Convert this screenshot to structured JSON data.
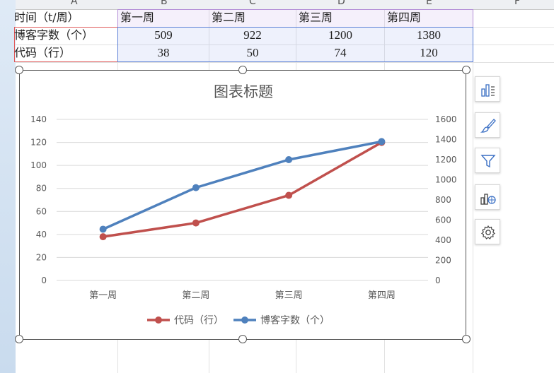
{
  "column_headers": [
    "A",
    "B",
    "C",
    "D",
    "E",
    "F"
  ],
  "table": {
    "header_row": [
      "时间（t/周）",
      "第一周",
      "第二周",
      "第三周",
      "第四周"
    ],
    "rows": [
      {
        "label": "博客字数（个）",
        "values": [
          "509",
          "922",
          "1200",
          "1380"
        ]
      },
      {
        "label": "代码（行）",
        "values": [
          "38",
          "50",
          "74",
          "120"
        ]
      }
    ]
  },
  "side_toolbar": {
    "icons": [
      "chart-elements-icon",
      "chart-style-icon",
      "chart-filter-icon",
      "chart-type-icon",
      "settings-icon"
    ]
  },
  "colors": {
    "series_code": "#c0504d",
    "series_blog": "#4f81bd",
    "selection_red": "#e05a5a",
    "selection_purple": "#b48fd6",
    "selection_blue": "#5b7fd6"
  },
  "chart_data": {
    "type": "line",
    "title": "图表标题",
    "categories": [
      "第一周",
      "第二周",
      "第三周",
      "第四周"
    ],
    "series": [
      {
        "name": "代码（行）",
        "axis": "left",
        "values": [
          38,
          50,
          74,
          120
        ],
        "color": "#c0504d"
      },
      {
        "name": "博客字数（个）",
        "axis": "right",
        "values": [
          509,
          922,
          1200,
          1380
        ],
        "color": "#4f81bd"
      }
    ],
    "y_left": {
      "min": 0,
      "max": 140,
      "ticks": [
        "0",
        "20",
        "40",
        "60",
        "80",
        "100",
        "120",
        "140"
      ]
    },
    "y_right": {
      "min": 0,
      "max": 1600,
      "ticks": [
        "0",
        "200",
        "400",
        "600",
        "800",
        "1000",
        "1200",
        "1400",
        "1600"
      ]
    },
    "grid": true,
    "legend": "bottom"
  }
}
